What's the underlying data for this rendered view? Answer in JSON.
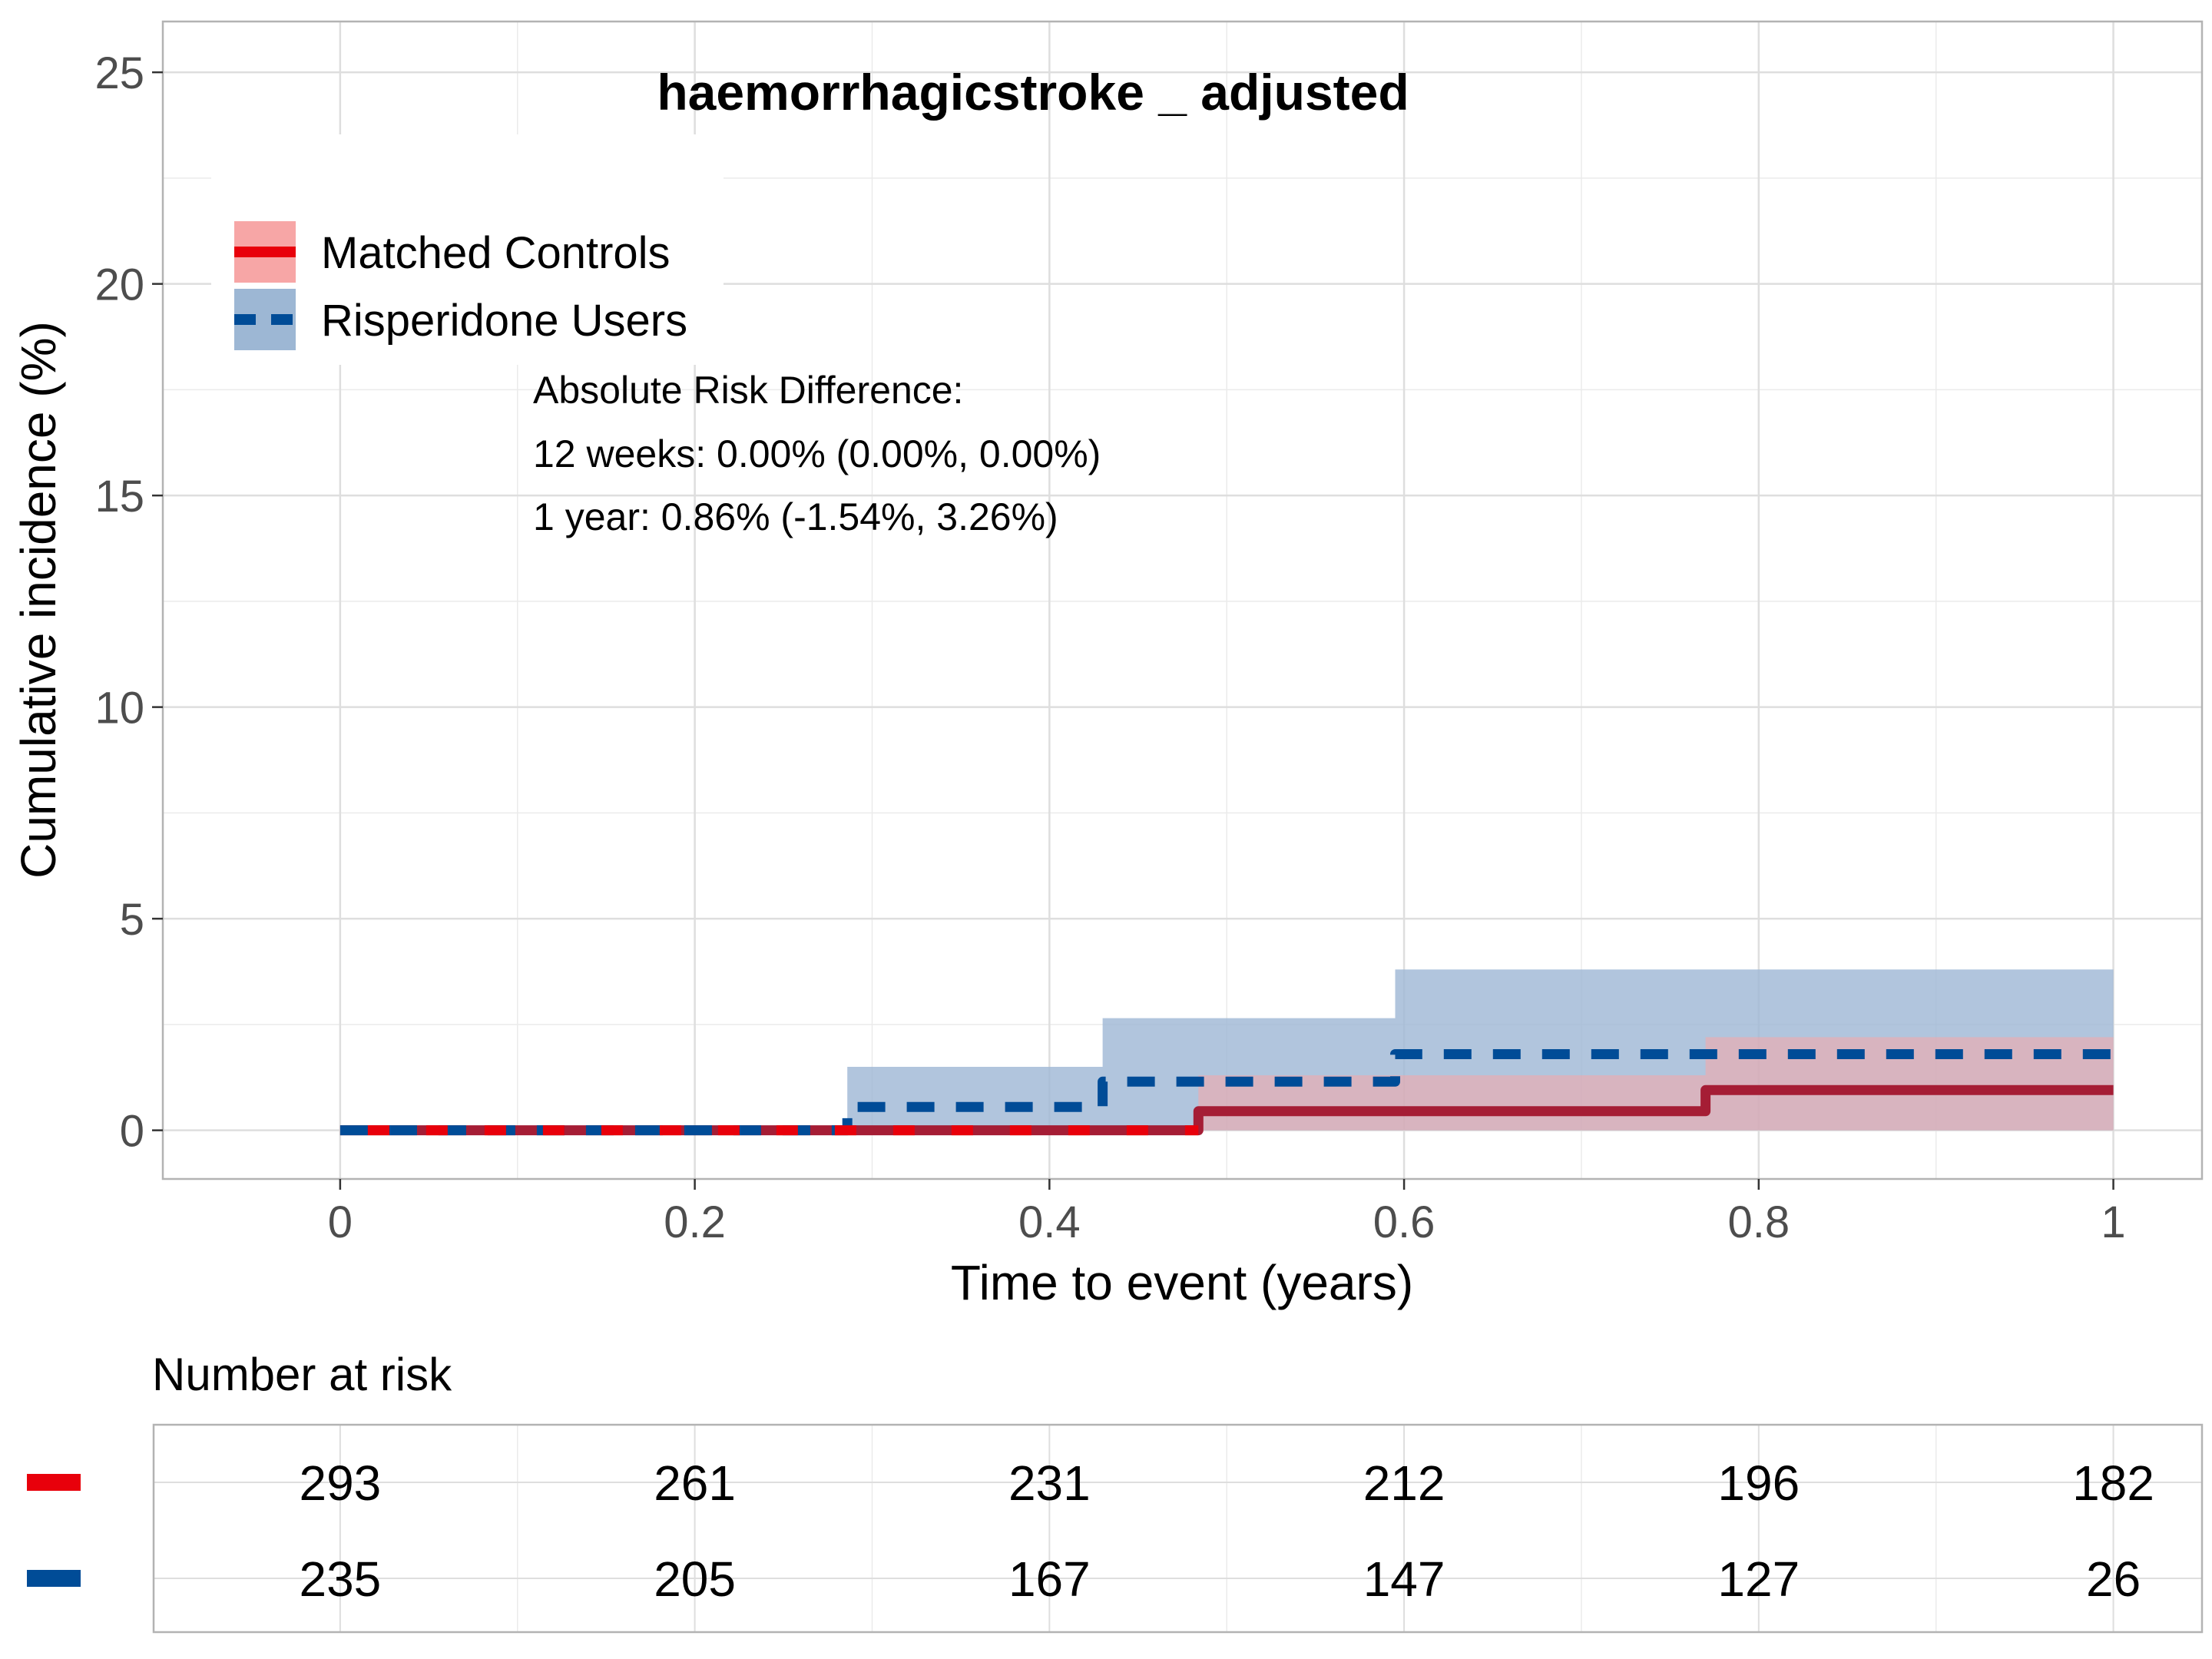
{
  "chart_data": {
    "type": "line",
    "subtype": "step-cumulative-incidence",
    "title": "haemorrhagicstroke _ adjusted",
    "xlabel": "Time to event (years)",
    "ylabel": "Cumulative incidence (%)",
    "xlim": [
      -0.1,
      1.05
    ],
    "ylim": [
      -1.15,
      26.2
    ],
    "x_ticks": [
      0,
      0.2,
      0.4,
      0.6,
      0.8,
      1
    ],
    "x_tick_labels": [
      "0",
      "0.2",
      "0.4",
      "0.6",
      "0.8",
      "1"
    ],
    "y_ticks": [
      0,
      5,
      10,
      15,
      20,
      25
    ],
    "y_tick_labels": [
      "0",
      "5",
      "10",
      "15",
      "20",
      "25"
    ],
    "grid": true,
    "legend_position": "top-left",
    "series": [
      {
        "name": "Matched Controls",
        "color": "#e8000b",
        "line_color": "#a51d35",
        "band_color": "#f7a6a6",
        "linestyle": "solid",
        "x": [
          0,
          0.484,
          0.77,
          1.0
        ],
        "y": [
          0,
          0.45,
          0.95,
          0.95
        ],
        "ci_lower": [
          0,
          0,
          0,
          0
        ],
        "ci_upper": [
          0,
          1.3,
          2.2,
          2.2
        ]
      },
      {
        "name": "Risperidone Users",
        "color": "#004c97",
        "line_color": "#004c97",
        "band_color": "#9db7d4",
        "linestyle": "dashed",
        "x": [
          0,
          0.286,
          0.43,
          0.595,
          1.0
        ],
        "y": [
          0,
          0.55,
          1.15,
          1.8,
          1.8
        ],
        "ci_lower": [
          0,
          0,
          0,
          0,
          0
        ],
        "ci_upper": [
          0,
          1.5,
          2.65,
          3.8,
          3.8
        ]
      }
    ],
    "annotations": [
      "Absolute Risk Difference:",
      "12 weeks: 0.00% (0.00%, 0.00%)",
      "1 year: 0.86% (-1.54%, 3.26%)"
    ],
    "risk_table": {
      "title": "Number at risk",
      "times": [
        0,
        0.2,
        0.4,
        0.6,
        0.8,
        1
      ],
      "rows": [
        {
          "color": "#e8000b",
          "values": [
            "293",
            "261",
            "231",
            "212",
            "196",
            "182"
          ]
        },
        {
          "color": "#004c97",
          "values": [
            "235",
            "205",
            "167",
            "147",
            "127",
            "26"
          ]
        }
      ]
    }
  }
}
